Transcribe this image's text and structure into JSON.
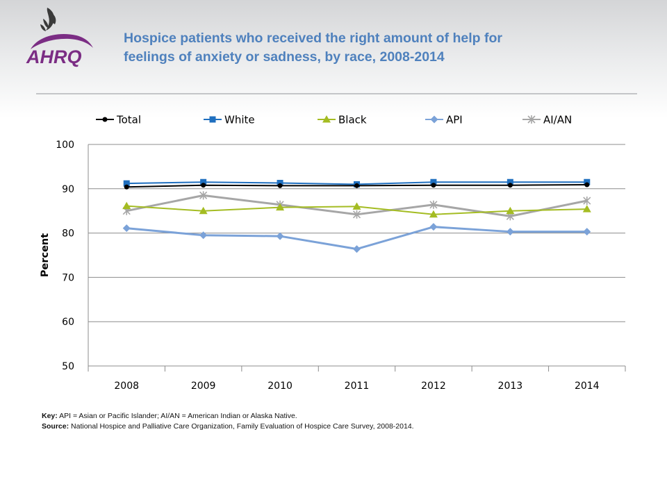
{
  "header": {
    "title_line1": "Hospice patients who received the right amount of help for",
    "title_line2": "feelings of anxiety or sadness, by race, 2008-2014",
    "logo_text": "AHRQ"
  },
  "chart_data": {
    "type": "line",
    "title": "Hospice patients who received the right amount of help for feelings of anxiety or sadness, by race, 2008-2014",
    "xlabel": "",
    "ylabel": "Percent",
    "categories": [
      "2008",
      "2009",
      "2010",
      "2011",
      "2012",
      "2013",
      "2014"
    ],
    "ylim": [
      50,
      100
    ],
    "yticks": [
      50,
      60,
      70,
      80,
      90,
      100
    ],
    "grid": true,
    "legend_position": "top",
    "series": [
      {
        "name": "Total",
        "color": "#000000",
        "marker": "circle",
        "values": [
          90.4,
          90.8,
          90.7,
          90.7,
          90.8,
          90.8,
          90.9
        ]
      },
      {
        "name": "White",
        "color": "#1f6fbf",
        "marker": "square",
        "values": [
          91.2,
          91.5,
          91.3,
          91.0,
          91.5,
          91.5,
          91.5
        ]
      },
      {
        "name": "Black",
        "color": "#a4bc22",
        "marker": "triangle",
        "values": [
          86.1,
          85.0,
          85.8,
          86.0,
          84.2,
          85.0,
          85.4
        ]
      },
      {
        "name": "API",
        "color": "#7ba2d8",
        "marker": "diamond",
        "values": [
          81.1,
          79.5,
          79.3,
          76.4,
          81.4,
          80.3,
          80.3
        ]
      },
      {
        "name": "AI/AN",
        "color": "#a6a6a6",
        "marker": "star",
        "values": [
          85.0,
          88.5,
          86.4,
          84.2,
          86.4,
          83.8,
          87.3
        ]
      }
    ]
  },
  "footer": {
    "key_label": "Key:",
    "key_text": "API = Asian or Pacific Islander; AI/AN = American Indian or Alaska Native.",
    "source_label": "Source:",
    "source_text": "National Hospice and Palliative Care Organization, Family Evaluation of Hospice Care Survey, 2008-2014."
  },
  "colors": {
    "title": "#4f81bd",
    "ahrq_purple": "#7b2d84"
  },
  "icons": {
    "hhs_logo": "hhs-eagle-icon",
    "ahrq_logo": "ahrq-logo"
  }
}
